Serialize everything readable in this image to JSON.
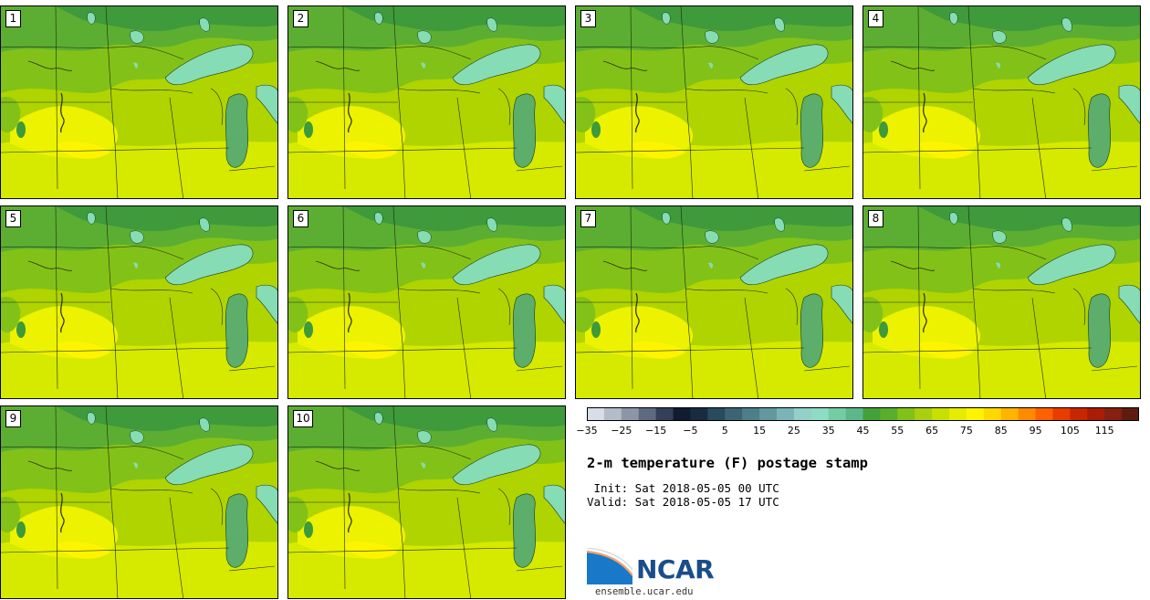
{
  "panels": [
    {
      "label": "1"
    },
    {
      "label": "2"
    },
    {
      "label": "3"
    },
    {
      "label": "4"
    },
    {
      "label": "5"
    },
    {
      "label": "6"
    },
    {
      "label": "7"
    },
    {
      "label": "8"
    },
    {
      "label": "9"
    },
    {
      "label": "10"
    }
  ],
  "colorbar": {
    "colors": [
      "#d8dee6",
      "#b4bcc8",
      "#8c96a6",
      "#5e6a80",
      "#34405a",
      "#101c30",
      "#182c40",
      "#2a4a5e",
      "#3c6474",
      "#4e7e8a",
      "#62989e",
      "#7ab4b6",
      "#92d0c8",
      "#8edcc4",
      "#74cca4",
      "#5cb88a",
      "#44a038",
      "#5aae2e",
      "#82c218",
      "#a8d010",
      "#c8e000",
      "#e6ec00",
      "#fff400",
      "#ffd800",
      "#ffb400",
      "#ff8a00",
      "#ff6000",
      "#e83c00",
      "#c82600",
      "#a81c08",
      "#862010",
      "#5e1c10"
    ],
    "tick_labels": [
      "−35",
      "−25",
      "−15",
      "−5",
      "5",
      "15",
      "25",
      "35",
      "45",
      "55",
      "65",
      "75",
      "85",
      "95",
      "105",
      "115"
    ]
  },
  "title": "2-m temperature (F) postage stamp",
  "init_line": " Init: Sat 2018-05-05 00 UTC",
  "valid_line": "Valid: Sat 2018-05-05 17 UTC",
  "logo": {
    "word": "NCAR",
    "url": "ensemble.ucar.edu"
  },
  "colors": {
    "lake": "#86dcb4",
    "dark_green": "#3e9a3a",
    "mid_green": "#5cae32",
    "yellow_green": "#b4d800",
    "yellow": "#e8f000"
  }
}
